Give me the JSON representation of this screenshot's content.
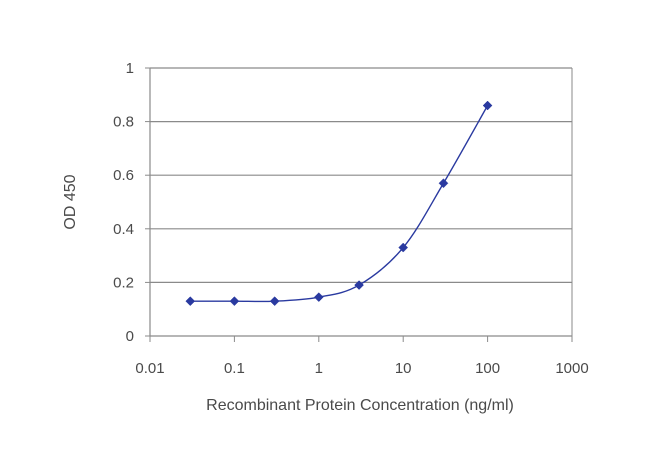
{
  "chart_data": {
    "type": "line",
    "title": "",
    "xlabel": "Recombinant Protein Concentration (ng/ml)",
    "ylabel": "OD 450",
    "x_scale": "log",
    "xlim": [
      0.01,
      1000
    ],
    "ylim": [
      0,
      1
    ],
    "x_ticks": [
      "0.01",
      "0.1",
      "1",
      "10",
      "100",
      "1000"
    ],
    "x_tick_values": [
      0.01,
      0.1,
      1,
      10,
      100,
      1000
    ],
    "y_ticks": [
      "0",
      "0.2",
      "0.4",
      "0.6",
      "0.8",
      "1"
    ],
    "y_tick_values": [
      0,
      0.2,
      0.4,
      0.6,
      0.8,
      1
    ],
    "grid": "horizontal",
    "legend": "none",
    "series": [
      {
        "x": [
          0.03,
          0.1,
          0.3,
          1,
          3,
          10,
          30,
          100
        ],
        "y": [
          0.13,
          0.13,
          0.13,
          0.145,
          0.19,
          0.33,
          0.57,
          0.86
        ],
        "color": "#2a3aa0",
        "marker": "diamond"
      }
    ],
    "colors": {
      "line": "#2a3aa0",
      "grid": "#8a8a8a",
      "axis": "#8a8a8a",
      "text": "#4a4a4a"
    }
  }
}
